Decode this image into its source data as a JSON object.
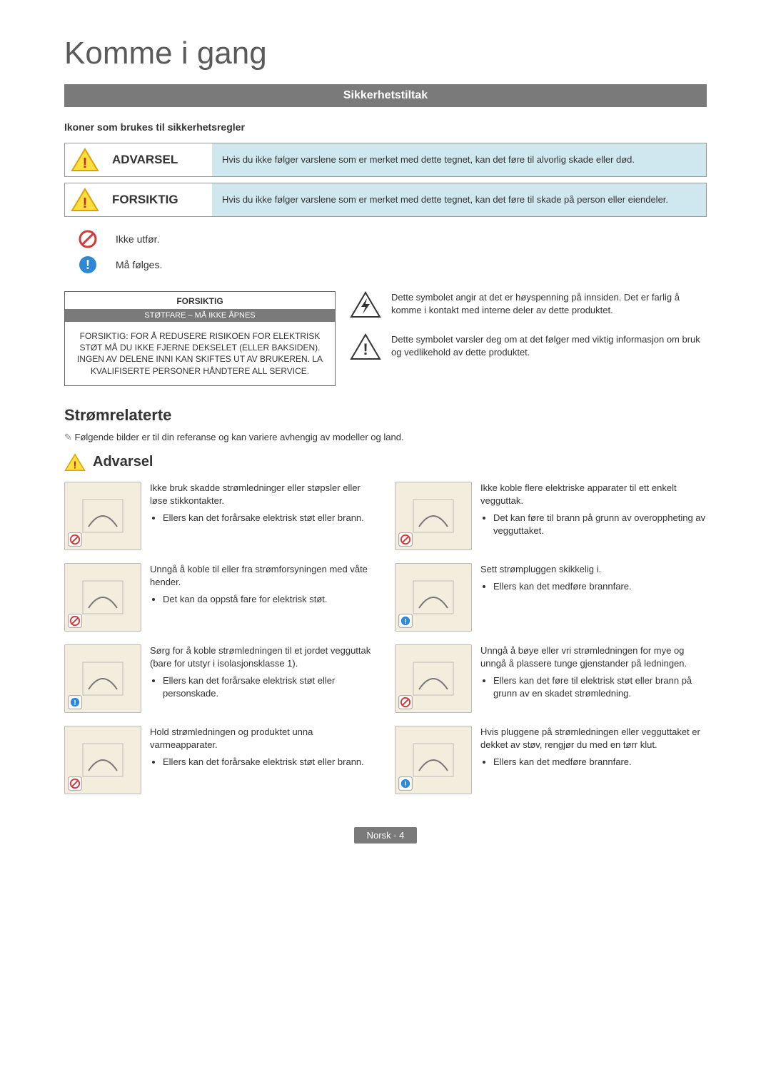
{
  "page_title": "Komme i gang",
  "banner": "Sikkerhetstiltak",
  "icons_subhead": "Ikoner som brukes til sikkerhetsregler",
  "legend": {
    "warning_label": "ADVARSEL",
    "warning_desc": "Hvis du ikke følger varslene som er merket med dette tegnet, kan det føre til alvorlig skade eller død.",
    "caution_label": "FORSIKTIG",
    "caution_desc": "Hvis du ikke følger varslene som er merket med dette tegnet, kan det føre til skade på person eller eiendeler.",
    "prohibit_text": "Ikke utfør.",
    "must_text": "Må følges."
  },
  "caution_box": {
    "top": "FORSIKTIG",
    "bar": "STØTFARE – MÅ IKKE ÅPNES",
    "body": "FORSIKTIG: FOR Å REDUSERE RISIKOEN FOR ELEKTRISK STØT MÅ DU IKKE FJERNE DEKSELET (ELLER BAKSIDEN). INGEN AV DELENE INNI KAN SKIFTES UT AV BRUKEREN. LA KVALIFISERTE PERSONER HÅNDTERE ALL SERVICE."
  },
  "symbols": {
    "hv": "Dette symbolet angir at det er høyspenning på innsiden. Det er farlig å komme i kontakt med interne deler av dette produktet.",
    "info": "Dette symbolet varsler deg om at det følger med viktig informasjon om bruk og vedlikehold av dette produktet."
  },
  "power_section": {
    "title": "Strømrelaterte",
    "note": "Følgende bilder er til din referanse og kan variere avhengig av modeller og land.",
    "heading": "Advarsel"
  },
  "items": [
    {
      "badge": "prohibit",
      "lead": "Ikke bruk skadde strømledninger eller støpsler eller løse stikkontakter.",
      "bullets": [
        "Ellers kan det forårsake elektrisk støt eller brann."
      ]
    },
    {
      "badge": "prohibit",
      "lead": "Ikke koble flere elektriske apparater til ett enkelt vegguttak.",
      "bullets": [
        "Det kan føre til brann på grunn av overoppheting av vegguttaket."
      ]
    },
    {
      "badge": "prohibit",
      "lead": "Unngå å koble til eller fra strømforsyningen med våte hender.",
      "bullets": [
        "Det kan da oppstå fare for elektrisk støt."
      ]
    },
    {
      "badge": "must",
      "lead": "Sett strømpluggen skikkelig i.",
      "bullets": [
        "Ellers kan det medføre brannfare."
      ]
    },
    {
      "badge": "must",
      "lead": "Sørg for å koble strømledningen til et jordet vegguttak (bare for utstyr i isolasjonsklasse 1).",
      "bullets": [
        "Ellers kan det forårsake elektrisk støt eller personskade."
      ]
    },
    {
      "badge": "prohibit",
      "lead": "Unngå å bøye eller vri strømledningen for mye og unngå å plassere tunge gjenstander på ledningen.",
      "bullets": [
        "Ellers kan det føre til elektrisk støt eller brann på grunn av en skadet strømledning."
      ]
    },
    {
      "badge": "prohibit",
      "lead": "Hold strømledningen og produktet unna varmeapparater.",
      "bullets": [
        "Ellers kan det forårsake elektrisk støt eller brann."
      ]
    },
    {
      "badge": "must",
      "lead": "Hvis pluggene på strømledningen eller vegguttaket er dekket av støv, rengjør du med en tørr klut.",
      "bullets": [
        "Ellers kan det medføre brannfare."
      ]
    }
  ],
  "footer": "Norsk - 4",
  "colors": {
    "banner_bg": "#7a7a7a",
    "desc_bg": "#cfe7ef",
    "thumb_bg": "#f3edde",
    "tri_fill": "#ffde3f",
    "tri_stroke": "#d9a400",
    "excl": "#c62828",
    "prohibit": "#d13a3a",
    "must_fill": "#2f88d6"
  }
}
